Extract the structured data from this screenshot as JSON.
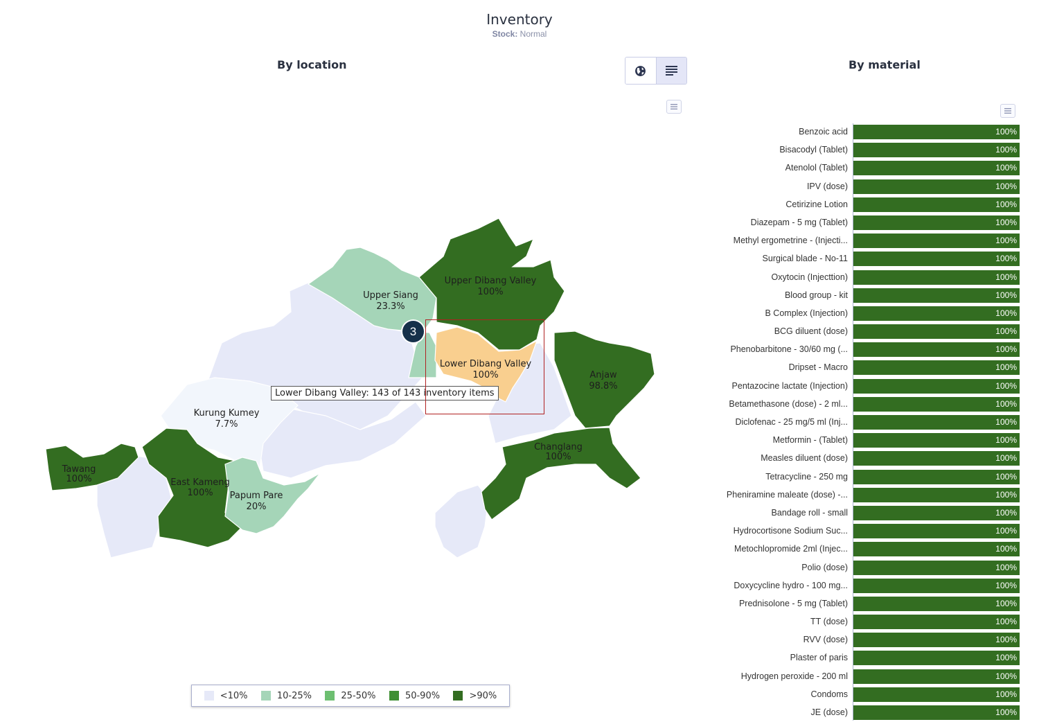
{
  "header": {
    "title": "Inventory",
    "subtitle_label": "Stock:",
    "subtitle_value": "Normal"
  },
  "sections": {
    "location_title": "By location",
    "material_title": "By material"
  },
  "toggle": {
    "map_icon": "globe-icon",
    "list_icon": "list-icon",
    "active": "map"
  },
  "colors": {
    "lt10": "#e6e9f8",
    "c10_25": "#a5d5b8",
    "c25_50": "#6dbf71",
    "c50_90": "#3f8f33",
    "gt90": "#336d21",
    "highlight": "#f9cf8f",
    "near_white": "#f2f6fc",
    "bar": "#336d21"
  },
  "map": {
    "regions": [
      {
        "name": "Upper Siang",
        "value": "23.3%"
      },
      {
        "name": "Upper Dibang Valley",
        "value": "100%"
      },
      {
        "name": "Lower Dibang Valley",
        "value": "100%"
      },
      {
        "name": "Anjaw",
        "value": "98.8%"
      },
      {
        "name": "Changlang",
        "value": "100%"
      },
      {
        "name": "Kurung Kumey",
        "value": "7.7%"
      },
      {
        "name": "Tawang",
        "value": "100%"
      },
      {
        "name": "East Kameng",
        "value": "100%"
      },
      {
        "name": "Papum Pare",
        "value": "20%"
      }
    ],
    "tooltip": "Lower Dibang Valley: 143 of 143 inventory items",
    "marker": "3"
  },
  "legend": [
    "<10%",
    "10-25%",
    "25-50%",
    "50-90%",
    ">90%"
  ],
  "chart_data": {
    "type": "bar",
    "orientation": "horizontal",
    "categories": [
      "Benzoic acid",
      "Bisacodyl (Tablet)",
      "Atenolol (Tablet)",
      "IPV (dose)",
      "Cetirizine Lotion",
      "Diazepam - 5 mg (Tablet)",
      "Methyl ergometrine - (Injecti...",
      "Surgical blade - No-11",
      "Oxytocin (Injecttion)",
      "Blood group - kit",
      "B Complex (Injection)",
      "BCG diluent (dose)",
      "Phenobarbitone - 30/60 mg (...",
      "Dripset - Macro",
      "Pentazocine lactate (Injection)",
      "Betamethasone (dose) - 2 ml...",
      "Diclofenac - 25 mg/5 ml (Inj...",
      "Metformin - (Tablet)",
      "Measles diluent (dose)",
      "Tetracycline - 250 mg",
      "Pheniramine maleate (dose) -...",
      "Bandage roll - small",
      "Hydrocortisone Sodium Suc...",
      "Metochlopromide 2ml (Injec...",
      "Polio (dose)",
      "Doxycycline hydro - 100 mg...",
      "Prednisolone - 5 mg (Tablet)",
      "TT (dose)",
      "RVV (dose)",
      "Plaster of paris",
      "Hydrogen peroxide - 200 ml",
      "Condoms",
      "JE (dose)"
    ],
    "values": [
      100,
      100,
      100,
      100,
      100,
      100,
      100,
      100,
      100,
      100,
      100,
      100,
      100,
      100,
      100,
      100,
      100,
      100,
      100,
      100,
      100,
      100,
      100,
      100,
      100,
      100,
      100,
      100,
      100,
      100,
      100,
      100,
      100
    ],
    "value_labels": [
      "100%",
      "100%",
      "100%",
      "100%",
      "100%",
      "100%",
      "100%",
      "100%",
      "100%",
      "100%",
      "100%",
      "100%",
      "100%",
      "100%",
      "100%",
      "100%",
      "100%",
      "100%",
      "100%",
      "100%",
      "100%",
      "100%",
      "100%",
      "100%",
      "100%",
      "100%",
      "100%",
      "100%",
      "100%",
      "100%",
      "100%",
      "100%",
      "100%"
    ],
    "xlim": [
      0,
      100
    ]
  }
}
